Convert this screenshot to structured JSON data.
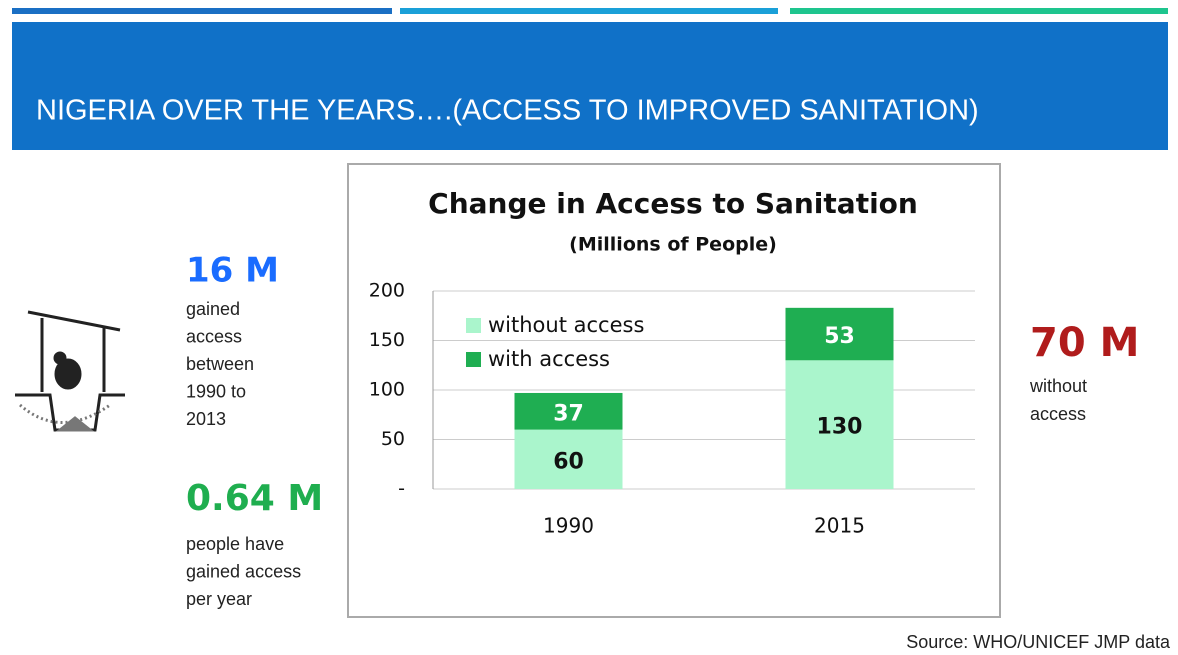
{
  "header": {
    "title": "NIGERIA OVER THE YEARS….(ACCESS TO IMPROVED SANITATION)"
  },
  "left": {
    "stat1": {
      "value": "16 M",
      "lines": [
        "gained",
        "access",
        "between",
        "1990 to",
        "2013"
      ]
    },
    "stat2": {
      "value": "0.64 M",
      "lines": [
        "people have",
        "gained access",
        "per year"
      ]
    }
  },
  "right": {
    "stat": {
      "value": "70 M",
      "lines": [
        "without",
        "access"
      ]
    }
  },
  "source": "Source: WHO/UNICEF JMP data",
  "chart_data": {
    "type": "stacked_bar",
    "title": "Change in Access to Sanitation",
    "subtitle": "(Millions of People)",
    "categories": [
      "1990",
      "2015"
    ],
    "series": [
      {
        "name": "without access",
        "color": "#aaf5cc",
        "values": [
          60,
          130
        ]
      },
      {
        "name": "with access",
        "color": "#1fae52",
        "values": [
          37,
          53
        ]
      }
    ],
    "ylim": [
      0,
      200
    ],
    "yticks": [
      {
        "value": 0,
        "label": "-"
      },
      50,
      100,
      150,
      200
    ],
    "grid": true,
    "legend": "upper left"
  }
}
